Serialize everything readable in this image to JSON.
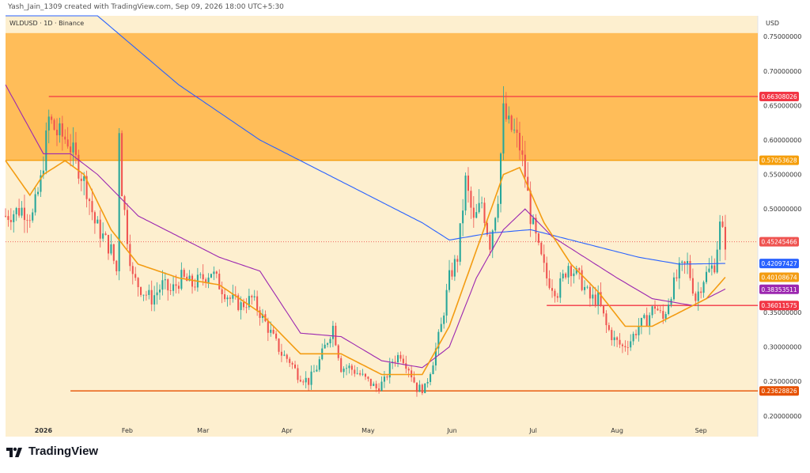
{
  "header": {
    "text": "Yash_Jain_1309 created with TradingView.com, Sep 09, 2026 18:00 UTC+5:30"
  },
  "symbol": {
    "text": "WLDUSD · 1D · Binance"
  },
  "currency": "USD",
  "brand": {
    "name": "TradingView"
  },
  "colors": {
    "background": "#fdefcf",
    "zone": "#ffb84f",
    "up": "#26a69a",
    "down": "#ef5350",
    "ma_fast": "#f39c12",
    "ma_mid": "#9c27b0",
    "ma_slow": "#2962ff"
  },
  "chart_data": {
    "type": "candlestick",
    "title": "WLDUSD · 1D · Binance",
    "ylim": [
      0.17,
      0.78
    ],
    "y_ticks": [
      "0.75000000",
      "0.70000000",
      "0.65000000",
      "0.60000000",
      "0.55000000",
      "0.50000000",
      "0.35000000",
      "0.30000000",
      "0.25000000",
      "0.20000000"
    ],
    "y_tick_values": [
      0.75,
      0.7,
      0.65,
      0.6,
      0.55,
      0.5,
      0.35,
      0.3,
      0.25,
      0.2
    ],
    "x_ticks": [
      "2026",
      "Feb",
      "Mar",
      "Apr",
      "May",
      "Jun",
      "Jul",
      "Aug",
      "Sep"
    ],
    "x_tick_days": [
      0,
      31,
      59,
      90,
      120,
      151,
      181,
      212,
      243
    ],
    "zone": {
      "from": 0.5705,
      "to": 0.755
    },
    "levels": [
      {
        "value": 0.66308026,
        "label": "0.66308026",
        "color": "#f23645"
      },
      {
        "value": 0.57053628,
        "label": "0.57053628",
        "color": "#f59e0b"
      },
      {
        "value": 0.36011575,
        "label": "0.36011575",
        "color": "#f23645"
      },
      {
        "value": 0.23628826,
        "label": "0.23628826",
        "color": "#e65100"
      }
    ],
    "price_labels": [
      {
        "value": 0.45245466,
        "label": "0.45245466",
        "color": "#ef5350"
      },
      {
        "value": 0.42097427,
        "label": "0.42097427",
        "color": "#2962ff"
      },
      {
        "value": 0.40108674,
        "label": "0.40108674",
        "color": "#f39c12"
      },
      {
        "value": 0.38353511,
        "label": "0.38353511",
        "color": "#9c27b0"
      }
    ],
    "close_anchors": [
      [
        -14,
        0.49
      ],
      [
        -8,
        0.5
      ],
      [
        -4,
        0.49
      ],
      [
        -1,
        0.54
      ],
      [
        2,
        0.63
      ],
      [
        5,
        0.61
      ],
      [
        9,
        0.6
      ],
      [
        13,
        0.56
      ],
      [
        16,
        0.53
      ],
      [
        19,
        0.48
      ],
      [
        22,
        0.46
      ],
      [
        25,
        0.44
      ],
      [
        27,
        0.41
      ],
      [
        28,
        0.62
      ],
      [
        29,
        0.53
      ],
      [
        31,
        0.46
      ],
      [
        33,
        0.4
      ],
      [
        37,
        0.38
      ],
      [
        40,
        0.37
      ],
      [
        44,
        0.39
      ],
      [
        47,
        0.38
      ],
      [
        51,
        0.4
      ],
      [
        55,
        0.39
      ],
      [
        59,
        0.4
      ],
      [
        62,
        0.41
      ],
      [
        65,
        0.39
      ],
      [
        69,
        0.37
      ],
      [
        73,
        0.36
      ],
      [
        77,
        0.37
      ],
      [
        80,
        0.35
      ],
      [
        84,
        0.32
      ],
      [
        88,
        0.29
      ],
      [
        91,
        0.28
      ],
      [
        94,
        0.26
      ],
      [
        98,
        0.25
      ],
      [
        101,
        0.27
      ],
      [
        104,
        0.3
      ],
      [
        107,
        0.33
      ],
      [
        110,
        0.27
      ],
      [
        113,
        0.27
      ],
      [
        117,
        0.26
      ],
      [
        120,
        0.25
      ],
      [
        123,
        0.24
      ],
      [
        126,
        0.25
      ],
      [
        129,
        0.28
      ],
      [
        132,
        0.29
      ],
      [
        135,
        0.27
      ],
      [
        138,
        0.24
      ],
      [
        141,
        0.24
      ],
      [
        144,
        0.28
      ],
      [
        147,
        0.33
      ],
      [
        150,
        0.4
      ],
      [
        153,
        0.43
      ],
      [
        156,
        0.54
      ],
      [
        159,
        0.48
      ],
      [
        162,
        0.51
      ],
      [
        165,
        0.45
      ],
      [
        168,
        0.52
      ],
      [
        170,
        0.64
      ],
      [
        172,
        0.62
      ],
      [
        174,
        0.61
      ],
      [
        176,
        0.59
      ],
      [
        178,
        0.55
      ],
      [
        180,
        0.49
      ],
      [
        183,
        0.44
      ],
      [
        186,
        0.4
      ],
      [
        190,
        0.38
      ],
      [
        194,
        0.42
      ],
      [
        198,
        0.4
      ],
      [
        202,
        0.37
      ],
      [
        205,
        0.37
      ],
      [
        208,
        0.33
      ],
      [
        211,
        0.31
      ],
      [
        214,
        0.3
      ],
      [
        217,
        0.31
      ],
      [
        220,
        0.33
      ],
      [
        223,
        0.34
      ],
      [
        226,
        0.36
      ],
      [
        229,
        0.34
      ],
      [
        232,
        0.38
      ],
      [
        235,
        0.41
      ],
      [
        238,
        0.42
      ],
      [
        241,
        0.37
      ],
      [
        244,
        0.4
      ],
      [
        246,
        0.41
      ],
      [
        248,
        0.42
      ],
      [
        250,
        0.475
      ],
      [
        252,
        0.452
      ]
    ],
    "ma_slow_anchors": [
      [
        -14,
        0.8
      ],
      [
        20,
        0.78
      ],
      [
        50,
        0.68
      ],
      [
        80,
        0.6
      ],
      [
        100,
        0.56
      ],
      [
        120,
        0.52
      ],
      [
        140,
        0.48
      ],
      [
        150,
        0.455
      ],
      [
        165,
        0.465
      ],
      [
        180,
        0.47
      ],
      [
        200,
        0.45
      ],
      [
        220,
        0.43
      ],
      [
        235,
        0.42
      ],
      [
        252,
        0.421
      ]
    ],
    "ma_mid_anchors": [
      [
        -14,
        0.68
      ],
      [
        0,
        0.58
      ],
      [
        10,
        0.58
      ],
      [
        20,
        0.55
      ],
      [
        35,
        0.49
      ],
      [
        50,
        0.46
      ],
      [
        65,
        0.43
      ],
      [
        80,
        0.41
      ],
      [
        95,
        0.32
      ],
      [
        110,
        0.315
      ],
      [
        125,
        0.28
      ],
      [
        140,
        0.27
      ],
      [
        150,
        0.3
      ],
      [
        160,
        0.4
      ],
      [
        170,
        0.47
      ],
      [
        178,
        0.5
      ],
      [
        188,
        0.46
      ],
      [
        200,
        0.43
      ],
      [
        212,
        0.4
      ],
      [
        225,
        0.37
      ],
      [
        240,
        0.36
      ],
      [
        252,
        0.384
      ]
    ],
    "ma_fast_anchors": [
      [
        -14,
        0.57
      ],
      [
        -5,
        0.52
      ],
      [
        0,
        0.55
      ],
      [
        8,
        0.57
      ],
      [
        15,
        0.55
      ],
      [
        25,
        0.47
      ],
      [
        35,
        0.42
      ],
      [
        50,
        0.4
      ],
      [
        65,
        0.39
      ],
      [
        80,
        0.35
      ],
      [
        95,
        0.29
      ],
      [
        110,
        0.29
      ],
      [
        125,
        0.26
      ],
      [
        140,
        0.26
      ],
      [
        150,
        0.33
      ],
      [
        160,
        0.44
      ],
      [
        170,
        0.55
      ],
      [
        176,
        0.56
      ],
      [
        185,
        0.48
      ],
      [
        195,
        0.42
      ],
      [
        205,
        0.38
      ],
      [
        215,
        0.33
      ],
      [
        225,
        0.33
      ],
      [
        235,
        0.35
      ],
      [
        245,
        0.37
      ],
      [
        252,
        0.401
      ]
    ]
  }
}
